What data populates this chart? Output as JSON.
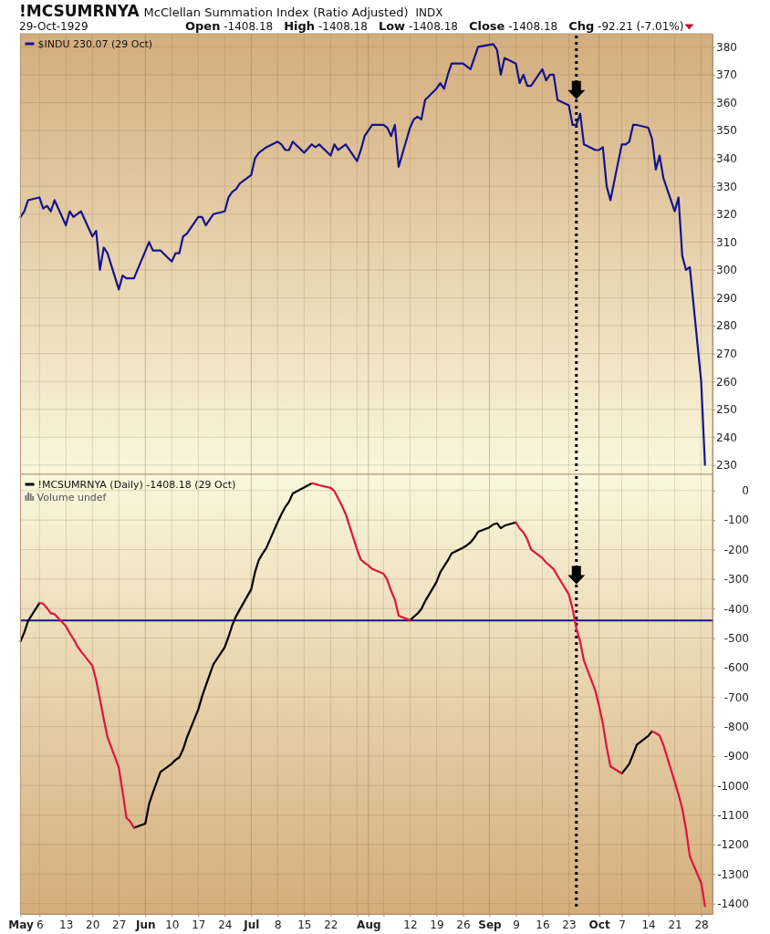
{
  "chart_data": [
    {
      "type": "line",
      "title": "!MCSUMRNYA",
      "subtitle": "McClellan Summation Index (Ratio Adjusted)",
      "annotations": [
        "INDX",
        "29-Oct-1929",
        "Open -1408.18",
        "High -1408.18",
        "Low -1408.18",
        "Close -1408.18",
        "Chg -92.21 (-7.01%)"
      ],
      "x": [
        "1929-05-01",
        "1929-05-02",
        "1929-05-03",
        "1929-05-06",
        "1929-05-07",
        "1929-05-08",
        "1929-05-09",
        "1929-05-10",
        "1929-05-13",
        "1929-05-14",
        "1929-05-15",
        "1929-05-17",
        "1929-05-20",
        "1929-05-21",
        "1929-05-22",
        "1929-05-23",
        "1929-05-24",
        "1929-05-27",
        "1929-05-28",
        "1929-05-29",
        "1929-05-31",
        "1929-06-04",
        "1929-06-05",
        "1929-06-07",
        "1929-06-10",
        "1929-06-11",
        "1929-06-12",
        "1929-06-13",
        "1929-06-14",
        "1929-06-17",
        "1929-06-18",
        "1929-06-19",
        "1929-06-20",
        "1929-06-21",
        "1929-06-24",
        "1929-06-25",
        "1929-06-26",
        "1929-06-27",
        "1929-06-28",
        "1929-07-01",
        "1929-07-02",
        "1929-07-03",
        "1929-07-05",
        "1929-07-08",
        "1929-07-09",
        "1929-07-10",
        "1929-07-11",
        "1929-07-12",
        "1929-07-15",
        "1929-07-17",
        "1929-07-18",
        "1929-07-19",
        "1929-07-22",
        "1929-07-23",
        "1929-07-24",
        "1929-07-26",
        "1929-07-29",
        "1929-07-30",
        "1929-07-31",
        "1929-08-02",
        "1929-08-05",
        "1929-08-06",
        "1929-08-07",
        "1929-08-08",
        "1929-08-09",
        "1929-08-12",
        "1929-08-13",
        "1929-08-14",
        "1929-08-15",
        "1929-08-16",
        "1929-08-19",
        "1929-08-20",
        "1929-08-21",
        "1929-08-22",
        "1929-08-23",
        "1929-08-26",
        "1929-08-28",
        "1929-08-29",
        "1929-08-30",
        "1929-09-03",
        "1929-09-04",
        "1929-09-05",
        "1929-09-06",
        "1929-09-09",
        "1929-09-10",
        "1929-09-11",
        "1929-09-12",
        "1929-09-13",
        "1929-09-16",
        "1929-09-17",
        "1929-09-18",
        "1929-09-19",
        "1929-09-20",
        "1929-09-23",
        "1929-09-24",
        "1929-09-25",
        "1929-09-26",
        "1929-09-27",
        "1929-09-30",
        "1929-10-01",
        "1929-10-02",
        "1929-10-03",
        "1929-10-04",
        "1929-10-07",
        "1929-10-08",
        "1929-10-09",
        "1929-10-10",
        "1929-10-11",
        "1929-10-14",
        "1929-10-15",
        "1929-10-16",
        "1929-10-17",
        "1929-10-18",
        "1929-10-21",
        "1929-10-22",
        "1929-10-23",
        "1929-10-24",
        "1929-10-25",
        "1929-10-28",
        "1929-10-29"
      ],
      "series": [
        {
          "name": "$INDU 230.07 (29 Oct)",
          "color": "#14148c",
          "values": [
            319,
            321,
            325,
            326,
            322,
            323,
            321,
            325,
            316,
            321,
            319,
            321,
            312,
            314,
            300,
            308,
            306,
            293,
            298,
            297,
            297,
            310,
            307,
            307,
            303,
            306,
            306,
            312,
            313,
            319,
            319,
            316,
            318,
            320,
            321,
            326,
            328,
            329,
            331,
            334,
            340,
            342,
            344,
            346,
            345,
            343,
            343,
            346,
            342,
            345,
            344,
            345,
            341,
            345,
            343,
            345,
            339,
            343,
            348,
            352,
            352,
            351,
            348,
            352,
            337,
            351,
            354,
            355,
            354,
            361,
            365,
            367,
            365,
            370,
            374,
            374,
            372,
            376,
            380,
            381,
            379,
            370,
            376,
            374,
            367,
            370,
            366,
            366,
            372,
            368,
            370,
            370,
            361,
            359,
            352,
            352,
            356,
            345,
            343,
            343,
            344,
            330,
            325,
            345,
            345,
            346,
            352,
            352,
            351,
            347,
            336,
            341,
            333,
            321,
            326,
            305,
            300,
            301,
            260,
            230.07
          ]
        }
      ],
      "xlim": [
        "1929-05-01",
        "1929-10-31"
      ],
      "xticks": [
        {
          "value": "1929-05-01",
          "label": null
        },
        {
          "value": "1929-05-06",
          "label": null
        },
        {
          "value": "1929-05-13",
          "label": null
        },
        {
          "value": "1929-05-20",
          "label": null
        },
        {
          "value": "1929-05-27",
          "label": null
        },
        {
          "value": "1929-06-03",
          "label": null
        },
        {
          "value": "1929-06-10",
          "label": null
        },
        {
          "value": "1929-06-17",
          "label": null
        },
        {
          "value": "1929-06-24",
          "label": null
        },
        {
          "value": "1929-07-01",
          "label": null
        },
        {
          "value": "1929-07-08",
          "label": null
        },
        {
          "value": "1929-07-15",
          "label": null
        },
        {
          "value": "1929-07-22",
          "label": null
        },
        {
          "value": "1929-07-29",
          "label": null
        },
        {
          "value": "1929-08-01",
          "label": null
        },
        {
          "value": "1929-08-05",
          "label": null
        },
        {
          "value": "1929-08-12",
          "label": null
        },
        {
          "value": "1929-08-19",
          "label": null
        },
        {
          "value": "1929-08-26",
          "label": null
        },
        {
          "value": "1929-09-02",
          "label": null
        },
        {
          "value": "1929-09-09",
          "label": null
        },
        {
          "value": "1929-09-16",
          "label": null
        },
        {
          "value": "1929-09-23",
          "label": null
        },
        {
          "value": "1929-10-01",
          "label": null
        },
        {
          "value": "1929-10-07",
          "label": null
        },
        {
          "value": "1929-10-14",
          "label": null
        },
        {
          "value": "1929-10-21",
          "label": null
        },
        {
          "value": "1929-10-28",
          "label": null
        }
      ],
      "ylim": [
        226.7,
        384.7
      ],
      "yticks": [
        230,
        240,
        250,
        260,
        270,
        280,
        290,
        300,
        310,
        320,
        330,
        340,
        350,
        360,
        370,
        380
      ],
      "grid": true,
      "legend": "top left",
      "tick_labels": "y",
      "ref_lines": [
        {
          "axis": "x",
          "value": "1929-09-25",
          "color": "#000000",
          "line_style": "dotted"
        }
      ]
    },
    {
      "type": "line",
      "annotations": [
        "Volume undef"
      ],
      "x": [
        "1929-05-01",
        "1929-05-02",
        "1929-05-03",
        "1929-05-06",
        "1929-05-07",
        "1929-05-08",
        "1929-05-09",
        "1929-05-10",
        "1929-05-13",
        "1929-05-14",
        "1929-05-15",
        "1929-05-16",
        "1929-05-17",
        "1929-05-20",
        "1929-05-21",
        "1929-05-22",
        "1929-05-23",
        "1929-05-24",
        "1929-05-27",
        "1929-05-28",
        "1929-05-29",
        "1929-05-30",
        "1929-05-31",
        "1929-06-03",
        "1929-06-04",
        "1929-06-05",
        "1929-06-06",
        "1929-06-07",
        "1929-06-10",
        "1929-06-11",
        "1929-06-12",
        "1929-06-13",
        "1929-06-14",
        "1929-06-17",
        "1929-06-18",
        "1929-06-19",
        "1929-06-20",
        "1929-06-21",
        "1929-06-24",
        "1929-06-25",
        "1929-06-26",
        "1929-06-27",
        "1929-06-28",
        "1929-07-01",
        "1929-07-02",
        "1929-07-03",
        "1929-07-04",
        "1929-07-05",
        "1929-07-08",
        "1929-07-09",
        "1929-07-10",
        "1929-07-11",
        "1929-07-12",
        "1929-07-17",
        "1929-07-18",
        "1929-07-19",
        "1929-07-22",
        "1929-07-23",
        "1929-07-24",
        "1929-07-25",
        "1929-07-26",
        "1929-07-29",
        "1929-07-30",
        "1929-07-31",
        "1929-08-01",
        "1929-08-02",
        "1929-08-05",
        "1929-08-06",
        "1929-08-07",
        "1929-08-08",
        "1929-08-09",
        "1929-08-12",
        "1929-08-13",
        "1929-08-14",
        "1929-08-15",
        "1929-08-16",
        "1929-08-19",
        "1929-08-20",
        "1929-08-21",
        "1929-08-22",
        "1929-08-23",
        "1929-08-26",
        "1929-08-27",
        "1929-08-28",
        "1929-08-29",
        "1929-08-30",
        "1929-09-02",
        "1929-09-03",
        "1929-09-04",
        "1929-09-05",
        "1929-09-06",
        "1929-09-09",
        "1929-09-10",
        "1929-09-11",
        "1929-09-12",
        "1929-09-13",
        "1929-09-16",
        "1929-09-17",
        "1929-09-18",
        "1929-09-19",
        "1929-09-20",
        "1929-09-23",
        "1929-09-24",
        "1929-09-25",
        "1929-09-26",
        "1929-09-27",
        "1929-09-30",
        "1929-10-01",
        "1929-10-02",
        "1929-10-03",
        "1929-10-04",
        "1929-10-07",
        "1929-10-08",
        "1929-10-09",
        "1929-10-10",
        "1929-10-11",
        "1929-10-14",
        "1929-10-15",
        "1929-10-16",
        "1929-10-17",
        "1929-10-18",
        "1929-10-21",
        "1929-10-22",
        "1929-10-23",
        "1929-10-24",
        "1929-10-25",
        "1929-10-28",
        "1929-10-29"
      ],
      "series": [
        {
          "name": "!MCSUMRNYA (Daily) -1408.18 (29 Oct)",
          "color": "#000000",
          "values": [
            -511,
            -481,
            -442,
            -381,
            null,
            null,
            null,
            null,
            null,
            null,
            null,
            null,
            null,
            null,
            null,
            null,
            null,
            null,
            null,
            null,
            null,
            null,
            -1143,
            -1129,
            -1062,
            -1024,
            -989,
            -954,
            -926,
            -913,
            -904,
            -877,
            -837,
            -742,
            -698,
            -661,
            -625,
            -589,
            -531,
            -496,
            -456,
            -426,
            -403,
            -335,
            -277,
            -236,
            -214,
            -195,
            -107,
            -80,
            -56,
            -38,
            -10,
            24,
            null,
            null,
            null,
            null,
            null,
            null,
            null,
            null,
            null,
            null,
            null,
            null,
            null,
            null,
            null,
            null,
            null,
            -440,
            -428,
            -417,
            -402,
            -375,
            -310,
            -277,
            -257,
            -237,
            -213,
            -194,
            -186,
            -176,
            -160,
            -140,
            -125,
            -115,
            -111,
            -128,
            -119,
            -108,
            null,
            null,
            null,
            null,
            null,
            null,
            null,
            null,
            null,
            null,
            null,
            null,
            null,
            null,
            null,
            null,
            null,
            null,
            null,
            -959,
            -943,
            -926,
            -894,
            -861,
            -832,
            -816,
            null,
            null,
            null,
            null,
            null,
            null,
            null,
            null,
            null,
            null
          ]
        },
        {
          "color": "#e0143c",
          "values": [
            null,
            null,
            null,
            -381,
            -384,
            -398,
            -416,
            -419,
            -460,
            -483,
            -503,
            -527,
            -545,
            -594,
            -643,
            -707,
            -774,
            -836,
            -939,
            -1021,
            -1109,
            -1122,
            -1143,
            null,
            null,
            null,
            null,
            null,
            null,
            null,
            null,
            null,
            null,
            null,
            null,
            null,
            null,
            null,
            null,
            null,
            null,
            null,
            null,
            null,
            null,
            null,
            null,
            null,
            null,
            null,
            null,
            null,
            null,
            24,
            22,
            18,
            9,
            -2,
            -27,
            -52,
            -80,
            -200,
            -234,
            -245,
            -254,
            -266,
            -282,
            -303,
            -340,
            -370,
            -424,
            -440,
            null,
            null,
            null,
            null,
            null,
            null,
            null,
            null,
            null,
            null,
            null,
            null,
            null,
            null,
            null,
            null,
            null,
            null,
            null,
            -108,
            -129,
            -142,
            -165,
            -200,
            -229,
            -244,
            -255,
            -267,
            -289,
            -352,
            -402,
            -468,
            -512,
            -577,
            -678,
            -730,
            -790,
            -870,
            -935,
            -959,
            null,
            null,
            null,
            null,
            null,
            -816,
            -822,
            -830,
            -862,
            -987,
            -1030,
            -1078,
            -1150,
            -1240,
            -1330,
            -1408.18
          ]
        }
      ],
      "xlim": [
        "1929-05-01",
        "1929-10-31"
      ],
      "xticks": [
        {
          "value": "1929-05-01",
          "label": "May"
        },
        {
          "value": "1929-05-06",
          "label": "6"
        },
        {
          "value": "1929-05-13",
          "label": "13"
        },
        {
          "value": "1929-05-20",
          "label": "20"
        },
        {
          "value": "1929-05-27",
          "label": "27"
        },
        {
          "value": "1929-06-03",
          "label": "Jun"
        },
        {
          "value": "1929-06-10",
          "label": "10"
        },
        {
          "value": "1929-06-17",
          "label": "17"
        },
        {
          "value": "1929-06-24",
          "label": "24"
        },
        {
          "value": "1929-07-01",
          "label": "Jul"
        },
        {
          "value": "1929-07-08",
          "label": "8"
        },
        {
          "value": "1929-07-15",
          "label": "15"
        },
        {
          "value": "1929-07-22",
          "label": "22"
        },
        {
          "value": "1929-07-29",
          "label": null
        },
        {
          "value": "1929-08-01",
          "label": "Aug"
        },
        {
          "value": "1929-08-05",
          "label": null
        },
        {
          "value": "1929-08-12",
          "label": "12"
        },
        {
          "value": "1929-08-19",
          "label": "19"
        },
        {
          "value": "1929-08-26",
          "label": "26"
        },
        {
          "value": "1929-09-02",
          "label": "Sep"
        },
        {
          "value": "1929-09-09",
          "label": "9"
        },
        {
          "value": "1929-09-16",
          "label": "16"
        },
        {
          "value": "1929-09-23",
          "label": "23"
        },
        {
          "value": "1929-10-01",
          "label": "Oct"
        },
        {
          "value": "1929-10-07",
          "label": "7"
        },
        {
          "value": "1929-10-14",
          "label": "14"
        },
        {
          "value": "1929-10-21",
          "label": "21"
        },
        {
          "value": "1929-10-28",
          "label": "28"
        }
      ],
      "ylim": [
        -1435,
        55
      ],
      "yticks": [
        0,
        -100,
        -200,
        -300,
        -400,
        -500,
        -600,
        -700,
        -800,
        -900,
        -1000,
        -1100,
        -1200,
        -1300,
        -1400
      ],
      "grid": true,
      "legend": "top left",
      "ref_lines": [
        {
          "axis": "y",
          "value": -440,
          "color": "#14148c"
        },
        {
          "axis": "x",
          "value": "1929-09-25",
          "color": "#000000",
          "line_style": "dotted"
        }
      ]
    }
  ]
}
